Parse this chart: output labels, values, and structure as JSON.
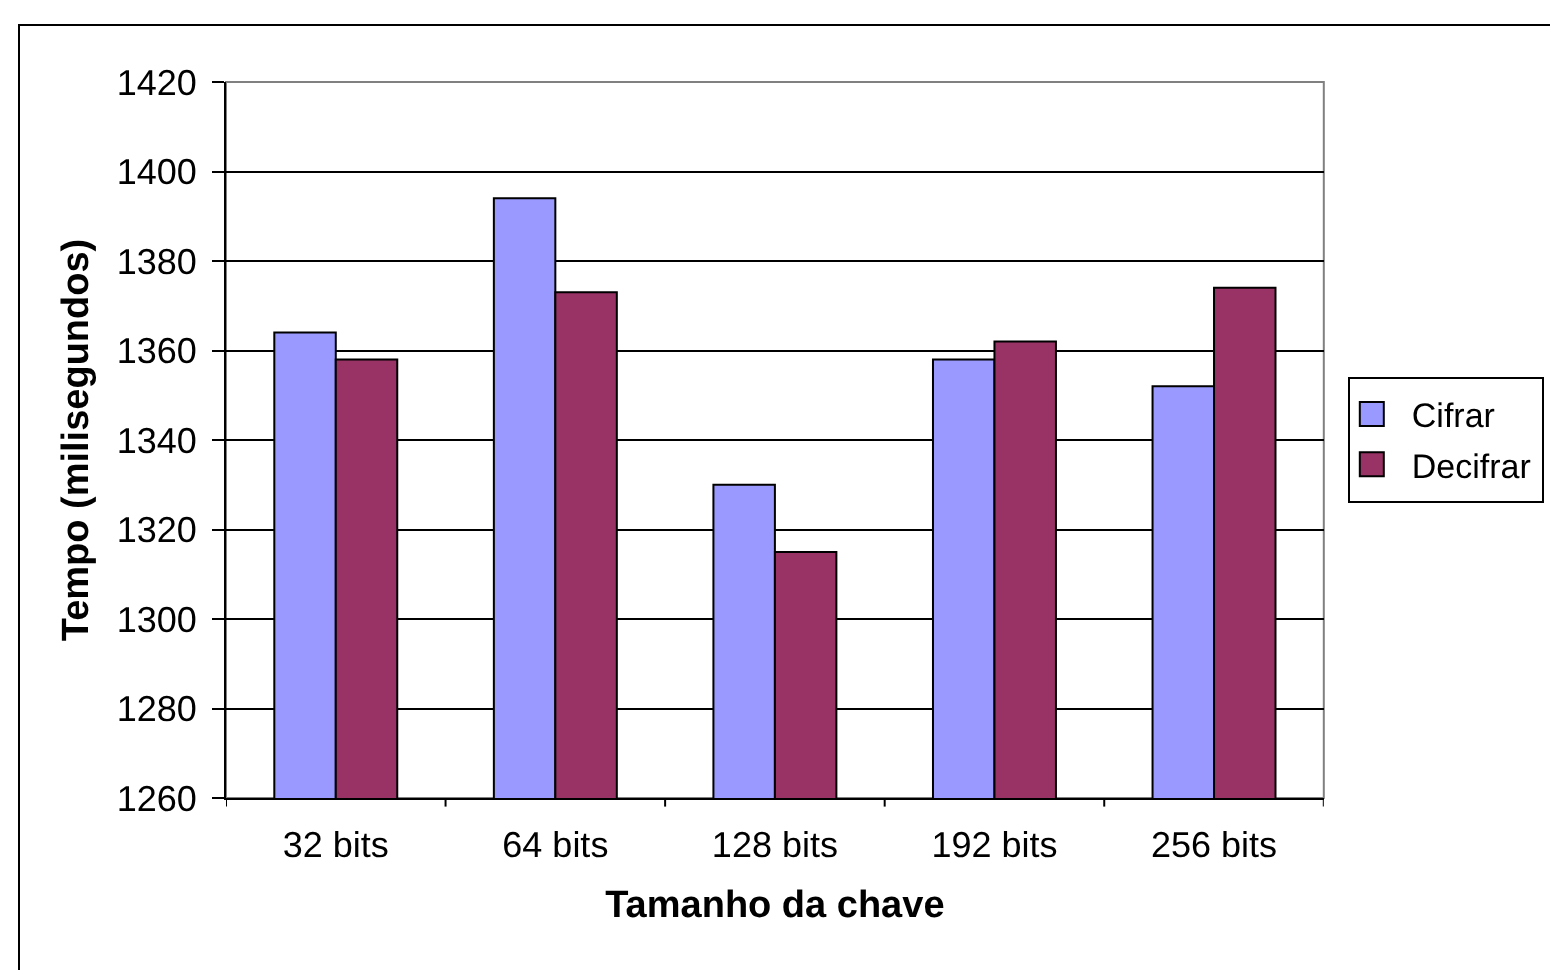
{
  "chart_data": {
    "type": "bar",
    "xlabel": "Tamanho da chave",
    "ylabel": "Tempo (milisegundos)",
    "categories": [
      "32 bits",
      "64 bits",
      "128 bits",
      "192 bits",
      "256 bits"
    ],
    "series": [
      {
        "name": "Cifrar",
        "color": "#9999ff",
        "values": [
          1364,
          1394,
          1330,
          1358,
          1352
        ]
      },
      {
        "name": "Decifrar",
        "color": "#993366",
        "values": [
          1358,
          1373,
          1315,
          1362,
          1374
        ]
      }
    ],
    "ylim": [
      1260,
      1420
    ],
    "yticks": [
      1260,
      1280,
      1300,
      1320,
      1340,
      1360,
      1380,
      1400,
      1420
    ],
    "grid": "y",
    "legend": "right"
  }
}
